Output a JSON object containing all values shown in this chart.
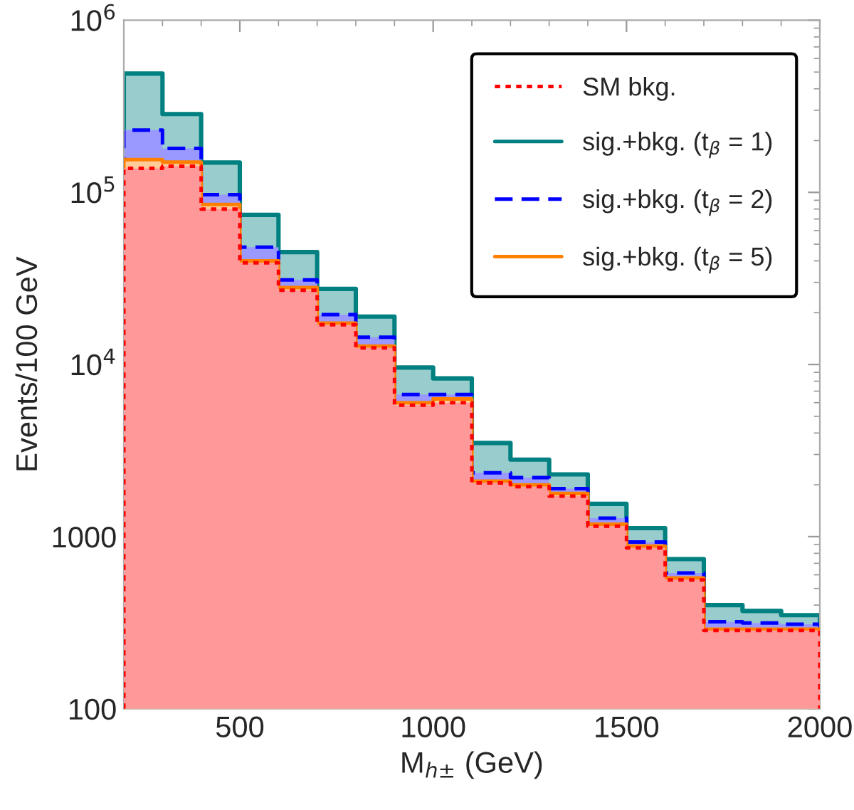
{
  "chart_data": {
    "type": "histogram",
    "xlabel": "M$_{h±}$ (GeV)",
    "ylabel": "Events/100 GeV",
    "bins": [
      200,
      300,
      400,
      500,
      600,
      700,
      800,
      900,
      1000,
      1100,
      1200,
      1300,
      1400,
      1500,
      1600,
      1700,
      1800,
      1900,
      2000
    ],
    "series": [
      {
        "name": "sig.+bkg. (t$_{β}$ = 1)",
        "color": "#008080",
        "line_style": "solid",
        "values": [
          490000,
          285000,
          149000,
          74000,
          45000,
          27500,
          19000,
          9600,
          8300,
          3500,
          2800,
          2300,
          1550,
          1120,
          740,
          400,
          370,
          350
        ]
      },
      {
        "name": "sig.+bkg. (t$_{β}$ = 2)",
        "color": "#0000ff",
        "line_style": "dashed",
        "values": [
          230000,
          180000,
          97000,
          48000,
          31000,
          19500,
          14400,
          6700,
          6700,
          2350,
          2200,
          1900,
          1280,
          930,
          615,
          320,
          315,
          310
        ]
      },
      {
        "name": "sig.+bkg. (t$_{β}$ = 5)",
        "color": "#ff8000",
        "line_style": "solid",
        "values": [
          155000,
          150000,
          85000,
          40000,
          28000,
          17400,
          12800,
          6000,
          6300,
          2100,
          2000,
          1780,
          1180,
          880,
          575,
          290,
          290,
          290
        ]
      },
      {
        "name": "SM bkg.",
        "color": "#ff0000",
        "line_style": "dotted",
        "values": [
          138000,
          142000,
          80000,
          39000,
          27000,
          17000,
          12500,
          5800,
          6000,
          2050,
          1950,
          1720,
          1150,
          860,
          560,
          285,
          285,
          285
        ]
      }
    ],
    "log": "y",
    "xlim": [
      200,
      2000
    ],
    "ylim": [
      100,
      1000000
    ],
    "xticks": [
      500,
      1000,
      1500,
      2000
    ],
    "yticks": [
      {
        "value": 100,
        "label": "100"
      },
      {
        "value": 1000,
        "label": "1000"
      },
      {
        "value": 10000,
        "label": "10$^{4}$"
      },
      {
        "value": 100000,
        "label": "10$^{5}$"
      },
      {
        "value": 1000000,
        "label": "10$^{6}$"
      }
    ],
    "grid": false,
    "legend": "top right"
  }
}
